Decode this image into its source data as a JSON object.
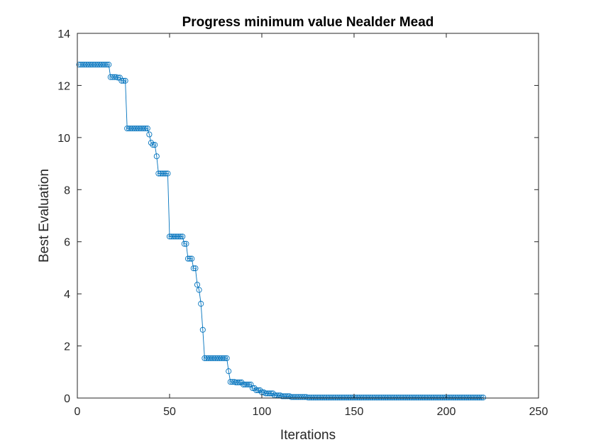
{
  "chart_data": {
    "type": "line",
    "title": "Progress minimum value Nealder Mead",
    "xlabel": "Iterations",
    "ylabel": "Best Evaluation",
    "xlim": [
      0,
      250
    ],
    "ylim": [
      0,
      14
    ],
    "xticks": [
      "0",
      "50",
      "100",
      "150",
      "200",
      "250"
    ],
    "yticks": [
      "0",
      "2",
      "4",
      "6",
      "8",
      "10",
      "12",
      "14"
    ],
    "grid": false,
    "series_color": "#0072BD",
    "series": [
      {
        "name": "best",
        "marker": "circle",
        "segments": [
          {
            "from": 1,
            "to": 17,
            "value": 12.8
          },
          {
            "from": 18,
            "to": 21,
            "value": 12.32
          },
          {
            "from": 22,
            "to": 23,
            "value": 12.3
          },
          {
            "from": 24,
            "to": 26,
            "value": 12.18
          },
          {
            "from": 27,
            "to": 38,
            "value": 10.35
          },
          {
            "from": 39,
            "to": 39,
            "value": 10.12
          },
          {
            "from": 40,
            "to": 40,
            "value": 9.8
          },
          {
            "from": 41,
            "to": 42,
            "value": 9.72
          },
          {
            "from": 43,
            "to": 43,
            "value": 9.28
          },
          {
            "from": 44,
            "to": 49,
            "value": 8.62
          },
          {
            "from": 50,
            "to": 57,
            "value": 6.2
          },
          {
            "from": 58,
            "to": 59,
            "value": 5.92
          },
          {
            "from": 60,
            "to": 62,
            "value": 5.35
          },
          {
            "from": 63,
            "to": 64,
            "value": 4.98
          },
          {
            "from": 65,
            "to": 65,
            "value": 4.35
          },
          {
            "from": 66,
            "to": 66,
            "value": 4.15
          },
          {
            "from": 67,
            "to": 67,
            "value": 3.62
          },
          {
            "from": 68,
            "to": 68,
            "value": 2.62
          },
          {
            "from": 69,
            "to": 81,
            "value": 1.53
          },
          {
            "from": 82,
            "to": 82,
            "value": 1.03
          },
          {
            "from": 83,
            "to": 85,
            "value": 0.62
          },
          {
            "from": 86,
            "to": 89,
            "value": 0.6
          },
          {
            "from": 90,
            "to": 94,
            "value": 0.52
          },
          {
            "from": 95,
            "to": 96,
            "value": 0.38
          },
          {
            "from": 97,
            "to": 99,
            "value": 0.3
          },
          {
            "from": 100,
            "to": 101,
            "value": 0.22
          },
          {
            "from": 102,
            "to": 106,
            "value": 0.18
          },
          {
            "from": 107,
            "to": 110,
            "value": 0.1
          },
          {
            "from": 111,
            "to": 115,
            "value": 0.07
          },
          {
            "from": 116,
            "to": 124,
            "value": 0.04
          },
          {
            "from": 125,
            "to": 220,
            "value": 0.02
          }
        ]
      }
    ]
  }
}
